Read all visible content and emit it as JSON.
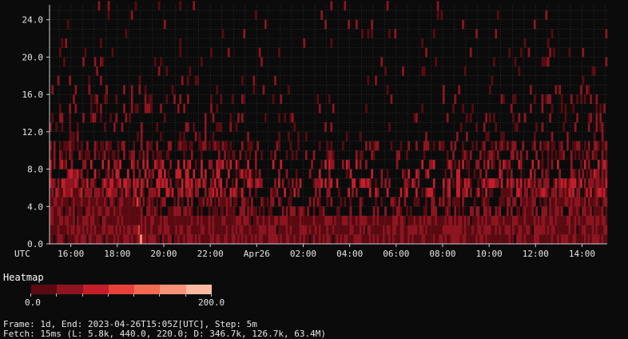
{
  "chart_data": {
    "type": "heatmap",
    "title": "",
    "xlabel": "",
    "ylabel": "",
    "x_ticks": [
      "16:00",
      "18:00",
      "20:00",
      "22:00",
      "Apr26",
      "02:00",
      "04:00",
      "06:00",
      "08:00",
      "10:00",
      "12:00",
      "14:00"
    ],
    "y_ticks": [
      "0.0",
      "4.0",
      "8.0",
      "12.0",
      "16.0",
      "20.0",
      "24.0"
    ],
    "x_corner_label": "UTC",
    "ylim": [
      0,
      25.6
    ],
    "xlim": [
      "2023-04-25T15:05Z",
      "2023-04-26T15:05Z"
    ],
    "grid": true,
    "bucket_height": 1.0,
    "color_min": 0.0,
    "color_max": 200.0,
    "colorscale": [
      "#5a0a10",
      "#8e1420",
      "#c41e2a",
      "#e8413a",
      "#f26a4f",
      "#f99277",
      "#fcbba1"
    ],
    "background": "#0b0b0b"
  },
  "legend": {
    "title": "Heatmap",
    "min_label": "0.0",
    "max_label": "200.0"
  },
  "footer": {
    "frame": "Frame: 1d, End: 2023-04-26T15:05Z[UTC], Step: 5m",
    "fetch": "Fetch: 15ms (L: 5.8k, 440.0, 220.0; D: 346.7k, 126.7k, 63.4M)"
  }
}
